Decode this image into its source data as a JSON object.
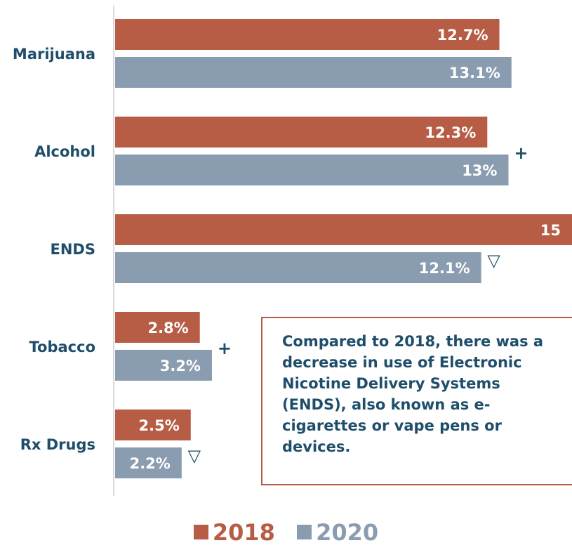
{
  "colors": {
    "series_2018": "#b75d45",
    "series_2020": "#8a9db0",
    "label": "#1f4e6b",
    "axis": "#d9d9d9"
  },
  "chart_data": {
    "type": "bar",
    "orientation": "horizontal",
    "categories": [
      "Marijuana",
      "Alcohol",
      "ENDS",
      "Tobacco",
      "Rx Drugs"
    ],
    "series": [
      {
        "name": "2018",
        "values": [
          12.7,
          12.3,
          15.1,
          2.8,
          2.5
        ],
        "labels": [
          "12.7%",
          "12.3%",
          "15",
          "2.8%",
          "2.5%"
        ]
      },
      {
        "name": "2020",
        "values": [
          13.1,
          13.0,
          12.1,
          3.2,
          2.2
        ],
        "labels": [
          "13.1%",
          "13%",
          "12.1%",
          "3.2%",
          "2.2%"
        ]
      }
    ],
    "markers": [
      "",
      "+",
      "▽",
      "+",
      "▽"
    ],
    "xlim": [
      0,
      15.1
    ],
    "legend_position": "bottom",
    "grid": false
  },
  "callout": {
    "text": "Compared to 2018, there was a decrease in use of Electronic Nicotine Delivery Systems (ENDS), also known as e-cigarettes or vape pens or devices."
  },
  "legend": {
    "items": [
      "2018",
      "2020"
    ]
  }
}
